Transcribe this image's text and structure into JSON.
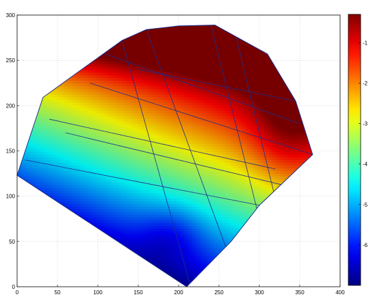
{
  "chart_data": {
    "type": "heatmap",
    "title": "",
    "xlabel": "",
    "ylabel": "",
    "xlim": [
      0,
      400
    ],
    "ylim": [
      0,
      300
    ],
    "grid": true,
    "x_ticks": [
      "0",
      "50",
      "100",
      "150",
      "200",
      "250",
      "300",
      "350",
      "400"
    ],
    "y_ticks": [
      "0",
      "50",
      "100",
      "150",
      "200",
      "250",
      "300"
    ],
    "colorbar": {
      "colormap": "jet",
      "range": [
        -7,
        -0.3
      ],
      "ticks": [
        "-1",
        "-2",
        "-3",
        "-4",
        "-5",
        "-6"
      ],
      "tick_values": [
        -1,
        -2,
        -3,
        -4,
        -5,
        -6
      ]
    },
    "domain_outline": [
      [
        0,
        123
      ],
      [
        32,
        209
      ],
      [
        80,
        240
      ],
      [
        130,
        272
      ],
      [
        160,
        284
      ],
      [
        200,
        288
      ],
      [
        245,
        289
      ],
      [
        310,
        257
      ],
      [
        345,
        205
      ],
      [
        366,
        146
      ],
      [
        300,
        90
      ],
      [
        265,
        50
      ],
      [
        210,
        0
      ]
    ],
    "field_value_range": [
      -7,
      -0.3
    ],
    "colors": {
      "mesh_line": "#1e2d8c",
      "background": "#ffffff",
      "grid": "#bdbdbd",
      "axis": "#000000"
    }
  }
}
